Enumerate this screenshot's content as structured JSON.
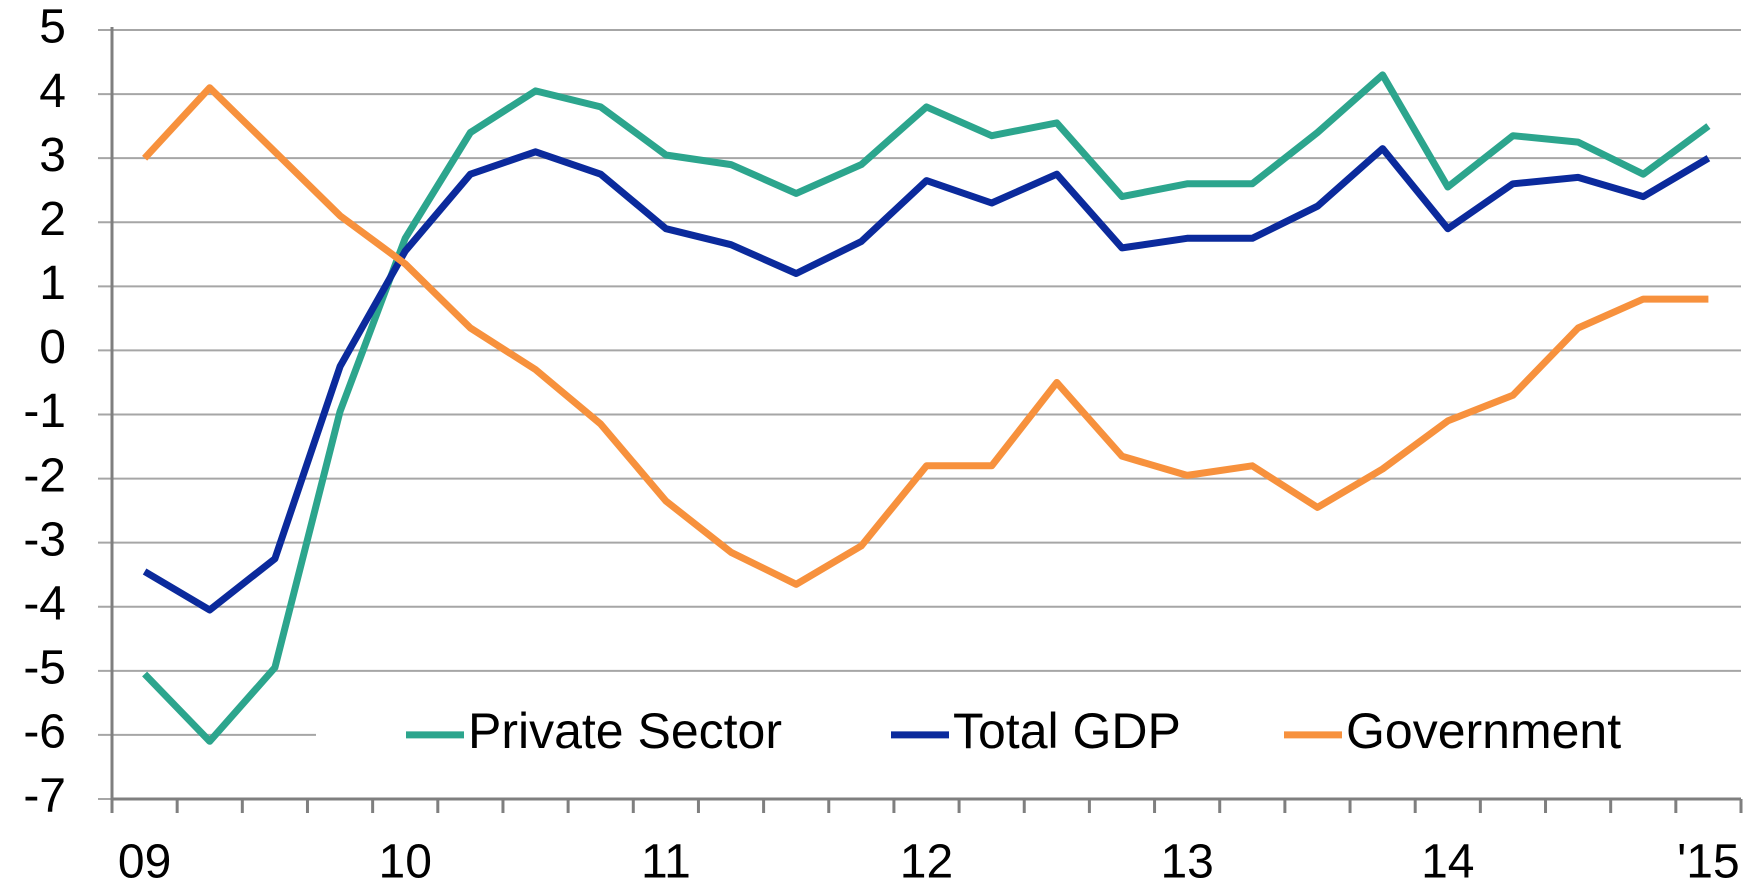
{
  "chart_data": {
    "type": "line",
    "categories": [
      "09",
      null,
      null,
      null,
      "10",
      null,
      null,
      null,
      "11",
      null,
      null,
      null,
      "12",
      null,
      null,
      null,
      "13",
      null,
      null,
      null,
      "14",
      null,
      null,
      null,
      "'15"
    ],
    "series": [
      {
        "name": "Private Sector",
        "color": "#2ca58d",
        "values": [
          -5.05,
          -6.1,
          -4.95,
          -0.95,
          1.75,
          3.4,
          4.05,
          3.8,
          3.05,
          2.9,
          2.45,
          2.9,
          3.8,
          3.35,
          3.55,
          2.4,
          2.6,
          2.6,
          3.4,
          4.3,
          2.55,
          3.35,
          3.25,
          2.75,
          3.5
        ]
      },
      {
        "name": "Total GDP",
        "color": "#0b2a9c",
        "values": [
          -3.45,
          -4.05,
          -3.25,
          -0.25,
          1.55,
          2.75,
          3.1,
          2.75,
          1.9,
          1.65,
          1.2,
          1.7,
          2.65,
          2.3,
          2.75,
          1.6,
          1.75,
          1.75,
          2.25,
          3.15,
          1.9,
          2.6,
          2.7,
          2.4,
          3.0
        ]
      },
      {
        "name": "Government",
        "color": "#f7913d",
        "values": [
          3.0,
          4.1,
          3.1,
          2.1,
          1.35,
          0.35,
          -0.3,
          -1.15,
          -2.35,
          -3.15,
          -3.65,
          -3.05,
          -1.8,
          -1.8,
          -0.5,
          -1.65,
          -1.95,
          -1.8,
          -2.45,
          -1.85,
          -1.1,
          -0.7,
          0.35,
          0.8,
          0.8
        ]
      }
    ],
    "ylim": [
      -7,
      5
    ],
    "yticks": [
      -7,
      -6,
      -5,
      -4,
      -3,
      -2,
      -1,
      0,
      1,
      2,
      3,
      4,
      5
    ],
    "grid": true,
    "legend": "lower center"
  }
}
